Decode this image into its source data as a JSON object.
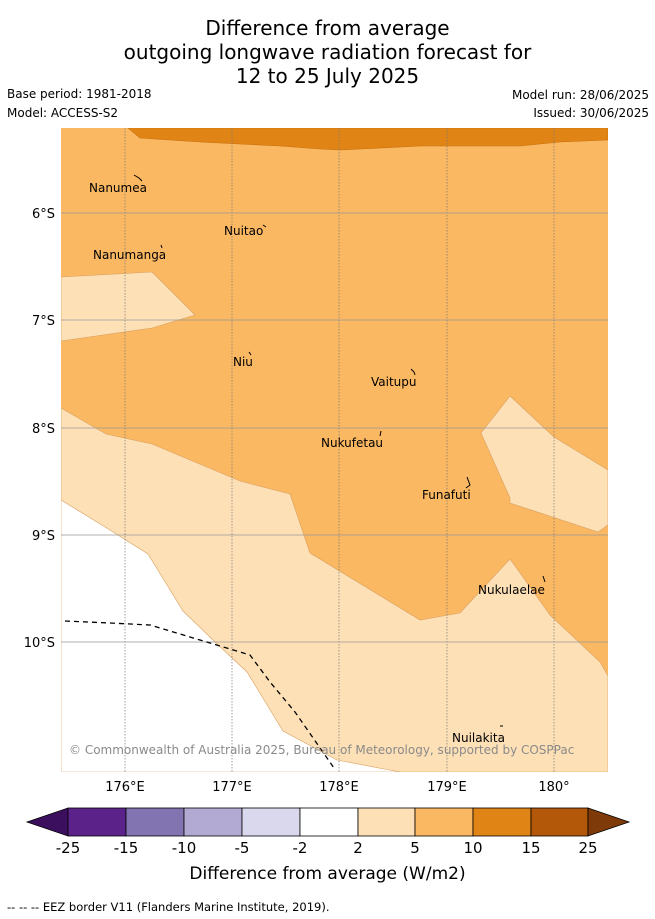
{
  "title": {
    "line1": "Difference from average",
    "line2": "outgoing longwave radiation forecast for",
    "line3": "12 to 25 July 2025"
  },
  "meta": {
    "base_period": "Base period: 1981-2018",
    "model": "Model: ACCESS-S2",
    "model_run": "Model run: 28/06/2025",
    "issued": "Issued: 30/06/2025"
  },
  "map": {
    "lon_ticks": [
      "176°E",
      "177°E",
      "178°E",
      "179°E",
      "180°"
    ],
    "lat_ticks": [
      "6°S",
      "7°S",
      "8°S",
      "9°S",
      "10°S"
    ],
    "places": [
      "Nanumea",
      "Nuitao",
      "Nanumanga",
      "Niu",
      "Vaitupu",
      "Nukufetau",
      "Funafuti",
      "Nukulaelae",
      "Nuilakita"
    ],
    "copyright": "© Commonwealth of Australia 2025, Bureau of Meteorology, supported by COSPPac"
  },
  "colorbar": {
    "ticks": [
      "-25",
      "-15",
      "-10",
      "-5",
      "-2",
      "2",
      "5",
      "10",
      "15",
      "25"
    ],
    "colors": [
      "#5b2389",
      "#8274b0",
      "#b3aad4",
      "#d9d8ec",
      "#ffffff",
      "#fde0b6",
      "#fbb862",
      "#e08416",
      "#b35809"
    ],
    "extend_low_color": "#3c0f5e",
    "extend_high_color": "#7f3a0a",
    "label": "Difference from average (W/m2)"
  },
  "legend": {
    "eez_border": "--  --  -- EEZ border V11 (Flanders Marine Institute, 2019)."
  }
}
